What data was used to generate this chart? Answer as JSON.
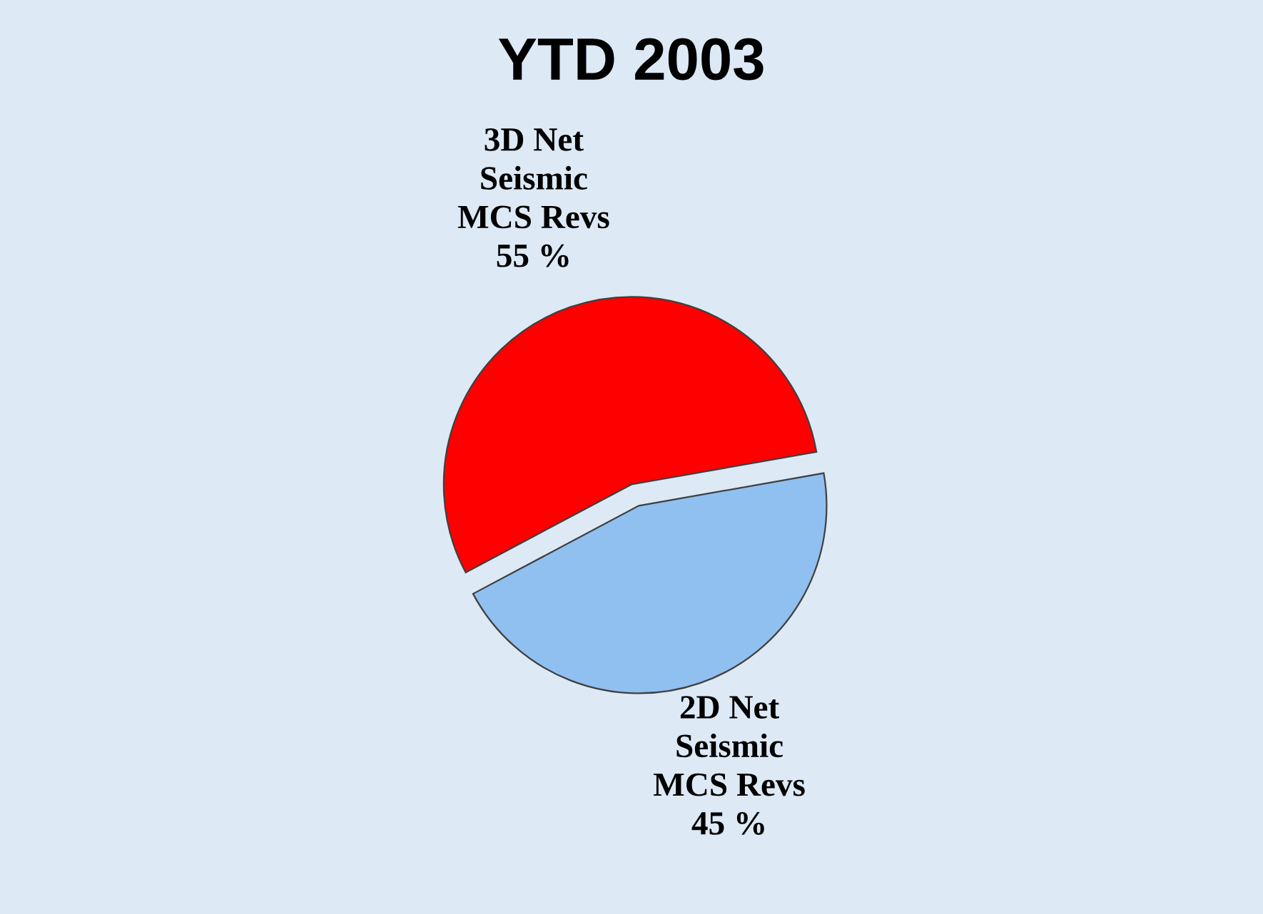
{
  "chart_data": {
    "type": "pie",
    "title": "YTD 2003",
    "categories": [
      "3D Net Seismic MCS Revs",
      "2D Net Seismic MCS Revs"
    ],
    "values": [
      55,
      45
    ],
    "value_labels": [
      "55 %",
      "45 %"
    ],
    "colors": [
      "#ff0000",
      "#8fc0f0"
    ],
    "legend": false
  }
}
